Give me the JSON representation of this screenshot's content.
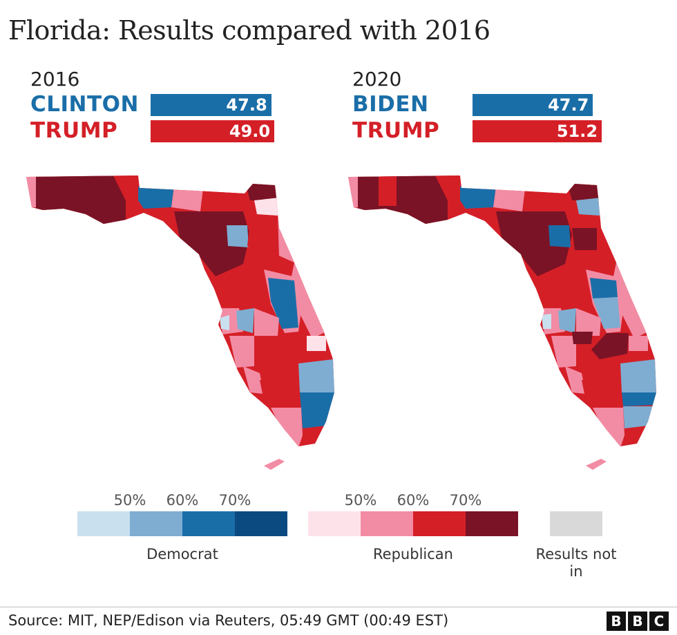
{
  "title": "Florida: Results compared with 2016",
  "colors": {
    "democrat": "#1a6ea8",
    "republican": "#d41f27",
    "dem_scale": [
      "#c9e0ef",
      "#7eadd1",
      "#1a6ea8",
      "#0b4a80"
    ],
    "rep_scale": [
      "#fde2ea",
      "#f28ca4",
      "#d41f27",
      "#7a1325"
    ],
    "no_result": "#d9d9d9"
  },
  "panels": [
    {
      "year": "2016",
      "candidates": [
        {
          "name": "CLINTON",
          "party": "dem",
          "value": 47.8,
          "label": "47.8"
        },
        {
          "name": "TRUMP",
          "party": "rep",
          "value": 49.0,
          "label": "49.0"
        }
      ]
    },
    {
      "year": "2020",
      "candidates": [
        {
          "name": "BIDEN",
          "party": "dem",
          "value": 47.7,
          "label": "47.7"
        },
        {
          "name": "TRUMP",
          "party": "rep",
          "value": 51.2,
          "label": "51.2"
        }
      ]
    }
  ],
  "legend": {
    "ticks": [
      "50%",
      "60%",
      "70%"
    ],
    "democrat_label": "Democrat",
    "republican_label": "Republican",
    "no_result_label": "Results not in"
  },
  "source": "Source: MIT, NEP/Edison via Reuters, 05:49 GMT (00:49 EST)",
  "brand": [
    "B",
    "B",
    "C"
  ]
}
